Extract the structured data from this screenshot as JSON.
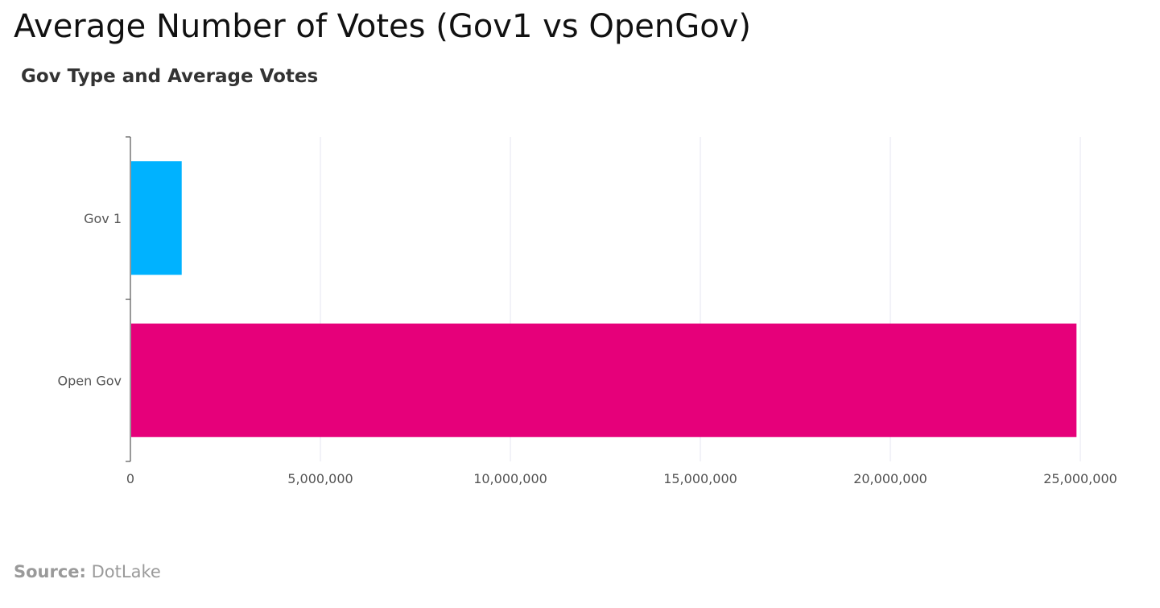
{
  "header": {
    "title": "Average Number of Votes (Gov1 vs OpenGov)",
    "subtitle": "Gov Type and Average Votes"
  },
  "footer": {
    "source_label": "Source:",
    "source_value": "DotLake"
  },
  "chart_data": {
    "type": "bar",
    "orientation": "horizontal",
    "categories": [
      "Gov 1",
      "Open Gov"
    ],
    "values": [
      1350000,
      24900000
    ],
    "colors": [
      "#00b2ff",
      "#e6007a"
    ],
    "xlim": [
      0,
      25000000
    ],
    "xticks": [
      0,
      5000000,
      10000000,
      15000000,
      20000000,
      25000000
    ],
    "xtick_labels": [
      "0",
      "5,000,000",
      "10,000,000",
      "15,000,000",
      "20,000,000",
      "25,000,000"
    ],
    "grid": true,
    "grid_color": "#e4e4f0",
    "axis_color": "#555555",
    "legend": "none"
  }
}
